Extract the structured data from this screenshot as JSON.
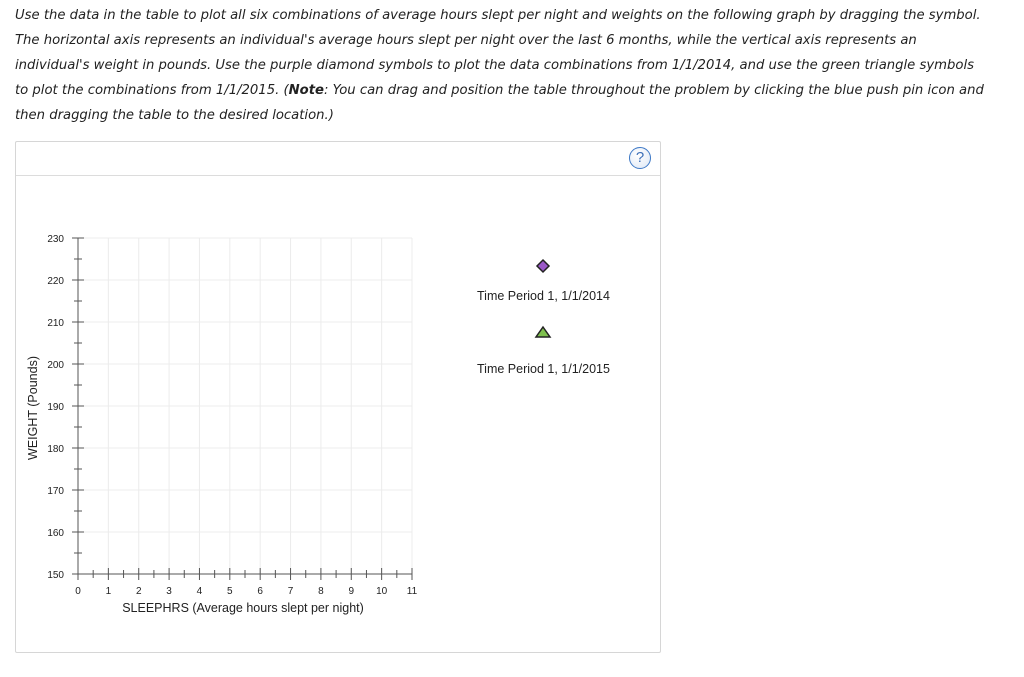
{
  "instructions": {
    "part1": "Use the data in the table to plot all six combinations of average hours slept per night and weights on the following graph by dragging the symbol. The horizontal axis represents an individual's average hours slept per night over the last 6 months, while the vertical axis represents an individual's weight in pounds. Use the purple diamond symbols to plot the data combinations from 1/1/2014, and use the green triangle symbols to plot the combinations from 1/1/2015. (",
    "note_label": "Note",
    "part2": ": You can drag and position the table throughout the problem by clicking the blue push pin icon and then dragging the table to the desired location.)"
  },
  "help": {
    "label": "?",
    "icon": "question-circle-icon"
  },
  "legend": {
    "diamond": {
      "label": "Time Period 1, 1/1/2014",
      "color": "#9b59c8",
      "icon": "purple-diamond-icon"
    },
    "triangle": {
      "label": "Time Period 1, 1/1/2015",
      "color": "#7ec04e",
      "icon": "green-triangle-icon"
    }
  },
  "chart_data": {
    "type": "scatter",
    "xlabel": "SLEEPHRS (Average hours slept per night)",
    "ylabel": "WEIGHT (Pounds)",
    "xlim": [
      0,
      11
    ],
    "ylim": [
      150,
      230
    ],
    "x_ticks": [
      0,
      1,
      2,
      3,
      4,
      5,
      6,
      7,
      8,
      9,
      10,
      11
    ],
    "y_ticks": [
      150,
      160,
      170,
      180,
      190,
      200,
      210,
      220,
      230
    ],
    "x_minor_step": 0.5,
    "y_minor_step": 5,
    "grid": true,
    "series": []
  }
}
